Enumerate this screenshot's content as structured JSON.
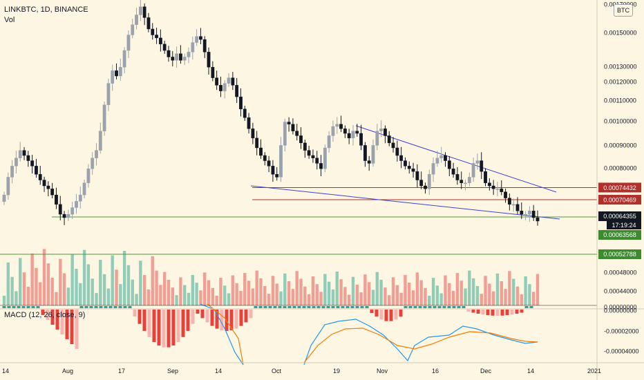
{
  "header": {
    "symbol_line": "LINKBTC, 1D, BINANCE",
    "vol_label": "Vol"
  },
  "currency_badge": "BTC",
  "macd_label": "MACD (12, 26, close, 9)",
  "colors": {
    "up": "#9aa3ad",
    "down": "#131722",
    "wedge": "#3f3fd9",
    "red_line": "#b0302b",
    "green_line": "#4e9a3a",
    "vol_up": "#7ec4b1",
    "vol_down": "#ef8e86",
    "macd_line": "#2196f3",
    "signal_line": "#f57c00",
    "hist_neg": "#e8413c",
    "hist_pos": "#26a69a"
  },
  "chart_data": [
    {
      "type": "candlestick",
      "title": "LINKBTC, 1D, BINANCE",
      "x_ticks": [
        "14",
        "Aug",
        "17",
        "Sep",
        "14",
        "Oct",
        "19",
        "Nov",
        "16",
        "Dec",
        "14",
        "2021"
      ],
      "y_ticks": [
        "0.00170000",
        "0.00150000",
        "0.00130000",
        "0.00120000",
        "0.00110000",
        "0.00100000",
        "0.00090000",
        "0.00080000"
      ],
      "ylim": [
        0.00061,
        0.0017
      ],
      "scale": "log",
      "grid": false,
      "price_labels": {
        "current": "0.00064355",
        "countdown": "17:19:24",
        "support_a": "0.00063568",
        "support_b": "0.00052788"
      },
      "horizontal_levels": [
        {
          "label": "0.00074432",
          "value": 0.00074432
        },
        {
          "label": "0.00070469",
          "value": 0.00070469
        }
      ],
      "approx_close_series": [
        0.00072,
        0.00078,
        0.00082,
        0.00085,
        0.00088,
        0.00086,
        0.00084,
        0.00082,
        0.00079,
        0.00077,
        0.00075,
        0.00074,
        0.00072,
        0.00069,
        0.00066,
        0.00065,
        0.00066,
        0.00068,
        0.0007,
        0.00072,
        0.00076,
        0.00081,
        0.00085,
        0.00088,
        0.00096,
        0.00108,
        0.00119,
        0.00126,
        0.00123,
        0.00128,
        0.00138,
        0.00148,
        0.00155,
        0.00162,
        0.00168,
        0.0016,
        0.00152,
        0.00148,
        0.00146,
        0.00142,
        0.00138,
        0.00134,
        0.00132,
        0.00136,
        0.00132,
        0.00134,
        0.00137,
        0.00143,
        0.00147,
        0.00145,
        0.00137,
        0.00128,
        0.00122,
        0.00118,
        0.00115,
        0.00119,
        0.00122,
        0.00118,
        0.00112,
        0.00106,
        0.00102,
        0.00097,
        0.00093,
        0.00089,
        0.00086,
        0.00084,
        0.00082,
        0.00079,
        0.00078,
        0.0009,
        0.001,
        0.00099,
        0.00096,
        0.00094,
        0.00091,
        0.00088,
        0.00086,
        0.00085,
        0.00083,
        0.00081,
        0.00089,
        0.00094,
        0.00098,
        0.00099,
        0.00097,
        0.00095,
        0.00093,
        0.00096,
        0.00095,
        0.0009,
        0.00084,
        0.00083,
        0.0009,
        0.00096,
        0.00097,
        0.00094,
        0.00091,
        0.00089,
        0.00086,
        0.00084,
        0.00082,
        0.00081,
        0.0008,
        0.00077,
        0.00075,
        0.00074,
        0.00079,
        0.00083,
        0.00085,
        0.00086,
        0.00084,
        0.00081,
        0.00079,
        0.00077,
        0.00076,
        0.00076,
        0.00078,
        0.00083,
        0.00084,
        0.0008,
        0.00076,
        0.00075,
        0.00074,
        0.00074,
        0.00073,
        0.00071,
        0.00069,
        0.00069,
        0.00067,
        0.00066,
        0.00066,
        0.00067,
        0.00065,
        0.00064
      ]
    },
    {
      "type": "bar",
      "title": "Vol",
      "y_ticks": [
        "0.00048000",
        "0.00044000",
        "0.00000000"
      ]
    },
    {
      "type": "line",
      "title": "MACD (12, 26, close, 9)",
      "y_ticks": [
        "0.00000000",
        "-0.00002000",
        "-0.00004000"
      ],
      "series": [
        {
          "name": "MACD",
          "values": []
        },
        {
          "name": "Signal",
          "values": []
        }
      ]
    }
  ]
}
